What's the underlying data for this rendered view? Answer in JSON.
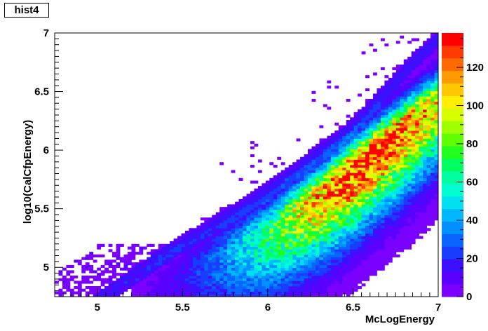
{
  "title": "hist4",
  "chart_data": {
    "type": "heatmap",
    "title": "hist4",
    "xlabel": "McLogEnergy",
    "ylabel": "log10(CalCfpEnergy)",
    "xlim": [
      4.75,
      7.0
    ],
    "ylim": [
      4.75,
      7.0
    ],
    "x_ticks": [
      "5",
      "5.5",
      "6",
      "6.5",
      "7"
    ],
    "y_ticks": [
      "5",
      "5.5",
      "6",
      "6.5",
      "7"
    ],
    "z_range": [
      0,
      138
    ],
    "z_ticks": [
      "0",
      "20",
      "40",
      "60",
      "80",
      "100",
      "120"
    ],
    "colormap": [
      "#7a00ff",
      "#5a00ff",
      "#3a10ff",
      "#1a3cff",
      "#0a64ff",
      "#0090ff",
      "#00b8ff",
      "#00e0f0",
      "#00ffd0",
      "#00ffa0",
      "#00ff60",
      "#20ff20",
      "#60ff00",
      "#a0ff00",
      "#d8ff00",
      "#ffef00",
      "#ffc800",
      "#ff9a00",
      "#ff6a00",
      "#ff3a00",
      "#ff0000"
    ],
    "grid": false,
    "structure": {
      "narrow_band": {
        "description_points": [
          [
            5.05,
            4.75
          ],
          [
            5.5,
            5.2
          ],
          [
            6.0,
            5.65
          ],
          [
            6.5,
            6.2
          ],
          [
            6.85,
            6.75
          ],
          [
            7.0,
            6.95
          ]
        ]
      },
      "wide_band_ridge": {
        "points": [
          [
            5.3,
            4.8
          ],
          [
            5.6,
            5.0
          ],
          [
            6.0,
            5.3
          ],
          [
            6.3,
            5.6
          ],
          [
            6.6,
            5.95
          ],
          [
            6.9,
            6.3
          ]
        ],
        "peak": [
          6.65,
          6.05
        ],
        "peak_value": 138
      }
    }
  }
}
